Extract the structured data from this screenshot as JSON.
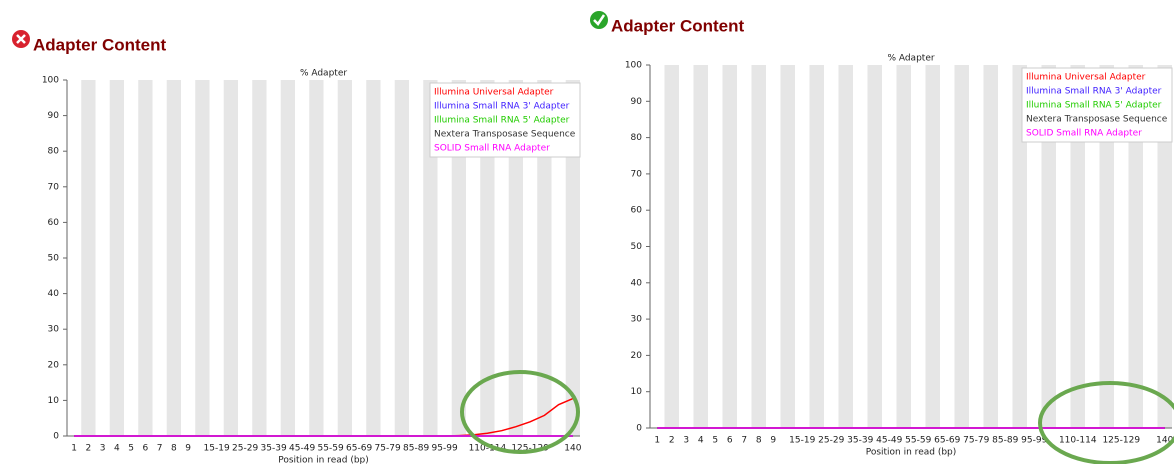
{
  "chart_data": [
    {
      "type": "line",
      "heading": "Adapter Content",
      "title": "% Adapter",
      "xlabel": "Position in read (bp)",
      "categories": [
        "1",
        "2",
        "3",
        "4",
        "5",
        "6",
        "7",
        "8",
        "9",
        null,
        "15-19",
        null,
        "25-29",
        null,
        "35-39",
        null,
        "45-49",
        null,
        "55-59",
        null,
        "65-69",
        null,
        "75-79",
        null,
        "85-89",
        null,
        "95-99",
        null,
        null,
        "110-114",
        null,
        null,
        "125-129",
        null,
        null,
        "140"
      ],
      "ylim": [
        0,
        100
      ],
      "yticks": [
        0,
        10,
        20,
        30,
        40,
        50,
        60,
        70,
        80,
        90,
        100
      ],
      "series": [
        {
          "name": "Illumina Universal Adapter",
          "color": "#ff0000",
          "values": [
            0,
            0,
            0,
            0,
            0,
            0,
            0,
            0,
            0,
            0,
            0,
            0,
            0,
            0,
            0,
            0,
            0,
            0,
            0,
            0,
            0,
            0,
            0,
            0,
            0,
            0,
            0,
            0.1,
            0.3,
            0.8,
            1.5,
            2.6,
            4.0,
            5.8,
            8.8,
            10.5
          ]
        },
        {
          "name": "Illumina Small RNA 3' Adapter",
          "color": "#4020ff",
          "values": [
            0,
            0,
            0,
            0,
            0,
            0,
            0,
            0,
            0,
            0,
            0,
            0,
            0,
            0,
            0,
            0,
            0,
            0,
            0,
            0,
            0,
            0,
            0,
            0,
            0,
            0,
            0,
            0,
            0,
            0,
            0,
            0,
            0,
            0,
            0,
            0
          ]
        },
        {
          "name": "Illumina Small RNA 5' Adapter",
          "color": "#22cc00",
          "values": [
            0,
            0,
            0,
            0,
            0,
            0,
            0,
            0,
            0,
            0,
            0,
            0,
            0,
            0,
            0,
            0,
            0,
            0,
            0,
            0,
            0,
            0,
            0,
            0,
            0,
            0,
            0,
            0,
            0,
            0,
            0,
            0,
            0,
            0,
            0,
            0
          ]
        },
        {
          "name": "Nextera Transposase Sequence",
          "color": "#333333",
          "values": [
            0,
            0,
            0,
            0,
            0,
            0,
            0,
            0,
            0,
            0,
            0,
            0,
            0,
            0,
            0,
            0,
            0,
            0,
            0,
            0,
            0,
            0,
            0,
            0,
            0,
            0,
            0,
            0,
            0,
            0,
            0,
            0,
            0,
            0,
            0,
            0
          ]
        },
        {
          "name": "SOLID Small RNA Adapter",
          "color": "#ff00ff",
          "values": [
            0,
            0,
            0,
            0,
            0,
            0,
            0,
            0,
            0,
            0,
            0,
            0,
            0,
            0,
            0,
            0,
            0,
            0,
            0,
            0,
            0,
            0,
            0,
            0,
            0,
            0,
            0,
            0,
            0,
            0,
            0,
            0,
            0,
            0,
            0,
            0
          ]
        }
      ]
    },
    {
      "type": "line",
      "heading": "Adapter Content",
      "title": "% Adapter",
      "xlabel": "Position in read (bp)",
      "categories": [
        "1",
        "2",
        "3",
        "4",
        "5",
        "6",
        "7",
        "8",
        "9",
        null,
        "15-19",
        null,
        "25-29",
        null,
        "35-39",
        null,
        "45-49",
        null,
        "55-59",
        null,
        "65-69",
        null,
        "75-79",
        null,
        "85-89",
        null,
        "95-99",
        null,
        null,
        "110-114",
        null,
        null,
        "125-129",
        null,
        null,
        "140"
      ],
      "ylim": [
        0,
        100
      ],
      "yticks": [
        0,
        10,
        20,
        30,
        40,
        50,
        60,
        70,
        80,
        90,
        100
      ],
      "series": [
        {
          "name": "Illumina Universal Adapter",
          "color": "#ff0000",
          "values": [
            0,
            0,
            0,
            0,
            0,
            0,
            0,
            0,
            0,
            0,
            0,
            0,
            0,
            0,
            0,
            0,
            0,
            0,
            0,
            0,
            0,
            0,
            0,
            0,
            0,
            0,
            0,
            0,
            0,
            0,
            0,
            0,
            0,
            0,
            0,
            0
          ]
        },
        {
          "name": "Illumina Small RNA 3' Adapter",
          "color": "#4020ff",
          "values": [
            0,
            0,
            0,
            0,
            0,
            0,
            0,
            0,
            0,
            0,
            0,
            0,
            0,
            0,
            0,
            0,
            0,
            0,
            0,
            0,
            0,
            0,
            0,
            0,
            0,
            0,
            0,
            0,
            0,
            0,
            0,
            0,
            0,
            0,
            0,
            0
          ]
        },
        {
          "name": "Illumina Small RNA 5' Adapter",
          "color": "#22cc00",
          "values": [
            0,
            0,
            0,
            0,
            0,
            0,
            0,
            0,
            0,
            0,
            0,
            0,
            0,
            0,
            0,
            0,
            0,
            0,
            0,
            0,
            0,
            0,
            0,
            0,
            0,
            0,
            0,
            0,
            0,
            0,
            0,
            0,
            0,
            0,
            0,
            0
          ]
        },
        {
          "name": "Nextera Transposase Sequence",
          "color": "#333333",
          "values": [
            0,
            0,
            0,
            0,
            0,
            0,
            0,
            0,
            0,
            0,
            0,
            0,
            0,
            0,
            0,
            0,
            0,
            0,
            0,
            0,
            0,
            0,
            0,
            0,
            0,
            0,
            0,
            0,
            0,
            0,
            0,
            0,
            0,
            0,
            0,
            0
          ]
        },
        {
          "name": "SOLID Small RNA Adapter",
          "color": "#ff00ff",
          "values": [
            0,
            0,
            0,
            0,
            0,
            0,
            0,
            0,
            0,
            0,
            0,
            0,
            0,
            0,
            0,
            0,
            0,
            0,
            0,
            0,
            0,
            0,
            0,
            0,
            0,
            0,
            0,
            0,
            0,
            0,
            0,
            0,
            0,
            0,
            0,
            0
          ]
        }
      ]
    }
  ]
}
